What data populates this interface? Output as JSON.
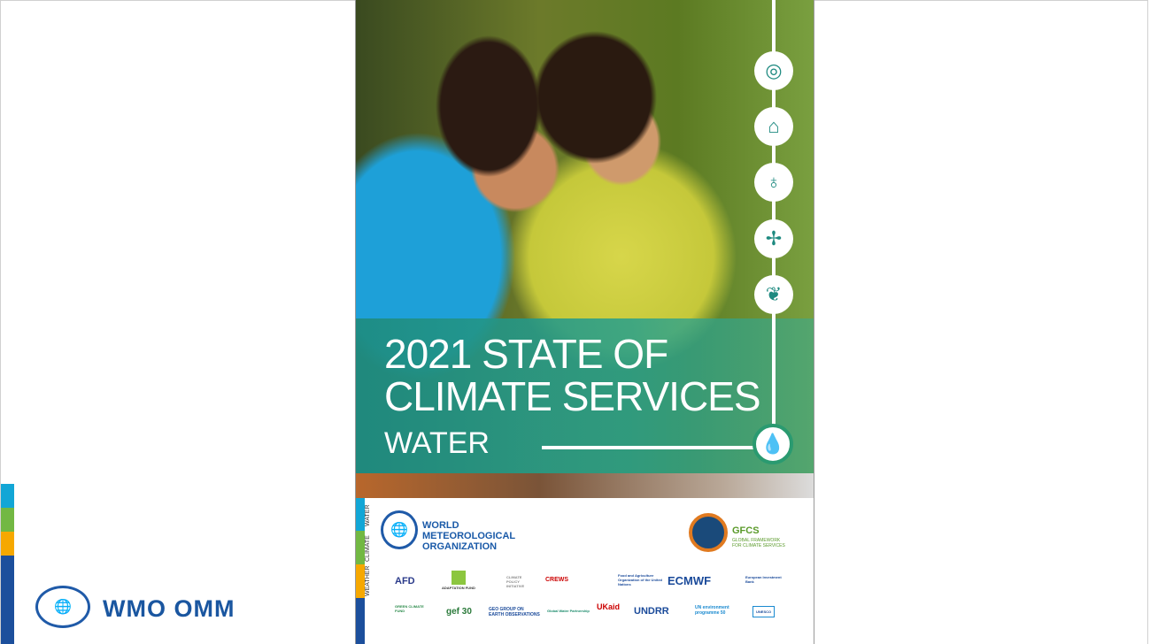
{
  "left_panel": {
    "brand": "WMO OMM",
    "strip_colors": [
      "#12a6d6",
      "#72b843",
      "#f6a800",
      "#1c4f9c"
    ]
  },
  "cover": {
    "title_line1": "2021 STATE OF",
    "title_line2": "CLIMATE SERVICES",
    "subtitle": "WATER",
    "sector_icons": [
      "sdg-wheel-icon",
      "flood-house-icon",
      "stethoscope-icon",
      "wind-turbine-icon",
      "plant-icon",
      "water-drop-icon"
    ],
    "side_labels": [
      "WATER",
      "CLIMATE",
      "WEATHER"
    ],
    "wmo_name": [
      "WORLD",
      "METEOROLOGICAL",
      "ORGANIZATION"
    ],
    "gfcs": {
      "name": "GFCS",
      "tagline": "GLOBAL FRAMEWORK FOR CLIMATE SERVICES"
    },
    "partners_row1": [
      "AFD",
      "ADAPTATION FUND",
      "CLIMATE POLICY INITIATIVE",
      "CREWS",
      "Food and Agriculture Organization of the United Nations",
      "ECMWF",
      "European Investment Bank"
    ],
    "partners_row2": [
      "GREEN CLIMATE FUND",
      "gef 30",
      "GEO GROUP ON EARTH OBSERVATIONS",
      "Global Water Partnership",
      "UKaid",
      "UNDRR",
      "UN environment programme 50",
      "UNESCO"
    ]
  }
}
